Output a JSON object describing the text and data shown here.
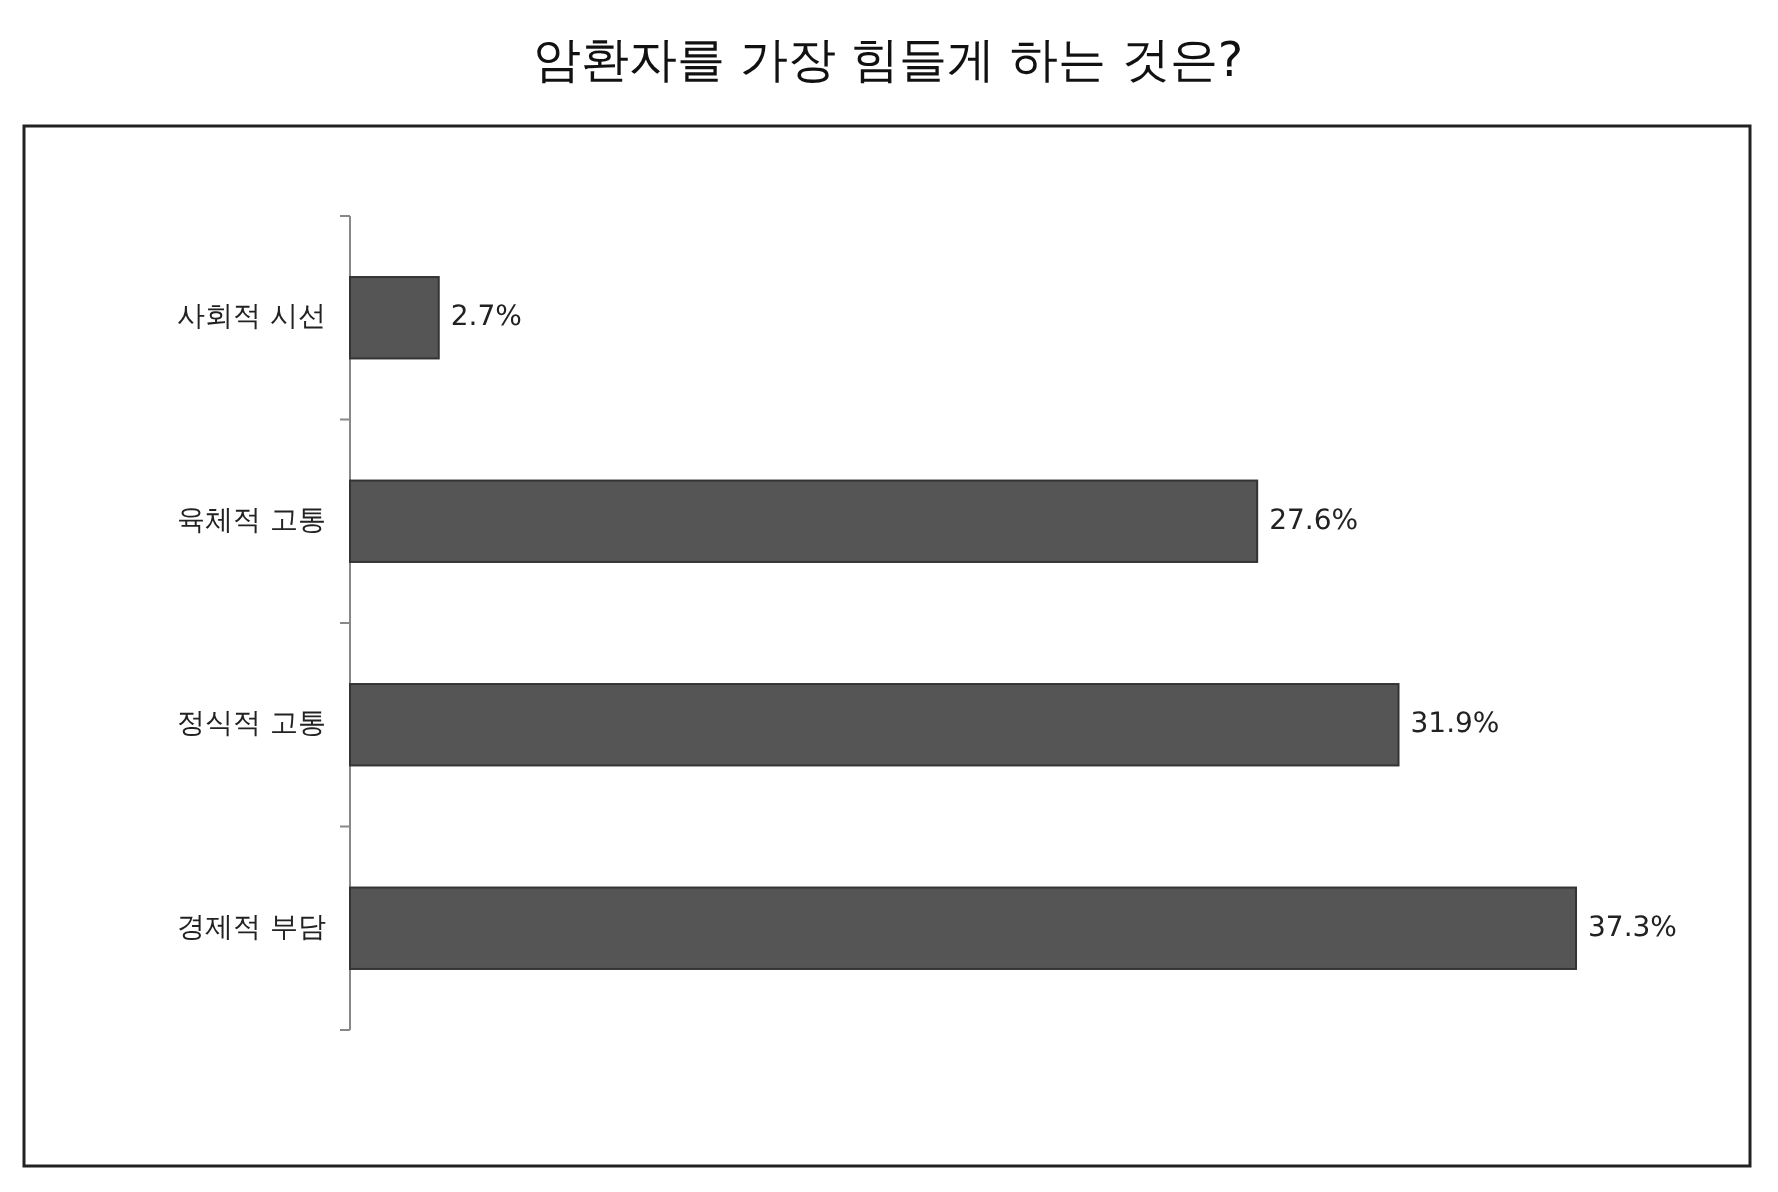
{
  "chart_data": {
    "type": "bar",
    "orientation": "horizontal",
    "title": "암환자를 가장 힘들게 하는 것은?",
    "categories": [
      "사회적 시선",
      "육체적 고통",
      "정식적 고통",
      "경제적 부담"
    ],
    "values": [
      2.7,
      27.6,
      31.9,
      37.3
    ],
    "value_labels": [
      "2.7%",
      "27.6%",
      "31.9%",
      "37.3%"
    ],
    "color": "#555555"
  }
}
